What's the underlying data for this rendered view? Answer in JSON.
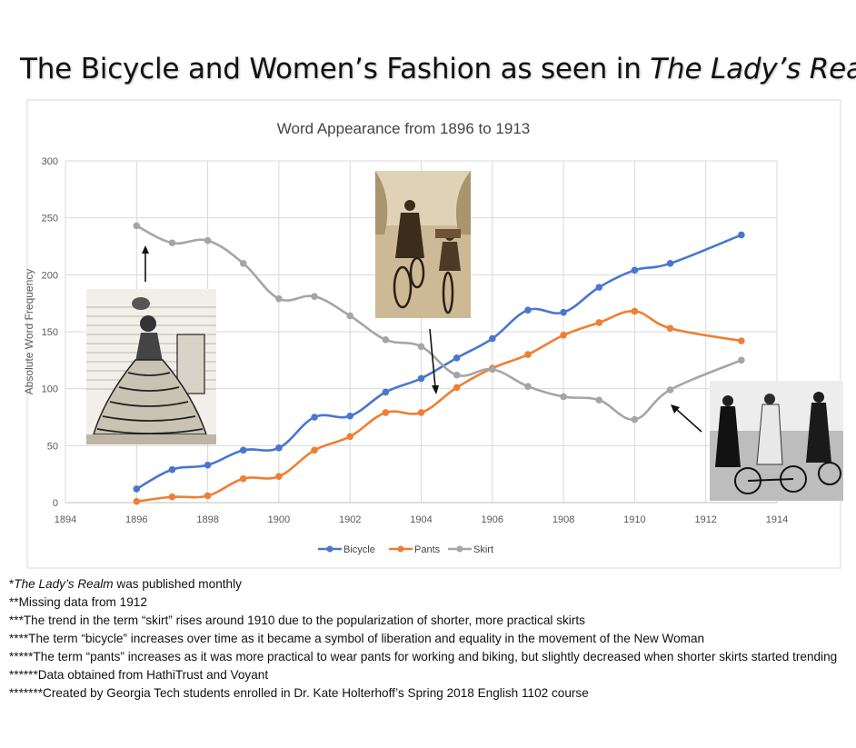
{
  "header": {
    "title_prefix": "The Bicycle and Women’s Fashion as seen in ",
    "title_italic": "The Lady’s Realm"
  },
  "chart_data": {
    "type": "line",
    "title": "Word Appearance from 1896 to 1913",
    "xlabel": "",
    "ylabel": "Absolute Word Frequency",
    "xlim": [
      1894,
      1914
    ],
    "ylim": [
      0,
      300
    ],
    "x_ticks": [
      1894,
      1896,
      1898,
      1900,
      1902,
      1904,
      1906,
      1908,
      1910,
      1912,
      1914
    ],
    "y_ticks": [
      0,
      50,
      100,
      150,
      200,
      250,
      300
    ],
    "grid": true,
    "legend_position": "bottom",
    "series": [
      {
        "name": "Bicycle",
        "color": "#4a76cf",
        "x": [
          1896,
          1897,
          1898,
          1899,
          1900,
          1901,
          1902,
          1903,
          1904,
          1905,
          1906,
          1907,
          1908,
          1909,
          1910,
          1911,
          1913
        ],
        "values": [
          12,
          29,
          33,
          46,
          48,
          75,
          76,
          97,
          109,
          127,
          144,
          169,
          167,
          189,
          204,
          210,
          235
        ]
      },
      {
        "name": "Pants",
        "color": "#ef7f33",
        "x": [
          1896,
          1897,
          1898,
          1899,
          1900,
          1901,
          1902,
          1903,
          1904,
          1905,
          1906,
          1907,
          1908,
          1909,
          1910,
          1911,
          1913
        ],
        "values": [
          1,
          5,
          6,
          21,
          23,
          46,
          58,
          79,
          79,
          101,
          118,
          130,
          147,
          158,
          168,
          153,
          142
        ]
      },
      {
        "name": "Skirt",
        "color": "#a5a5a5",
        "x": [
          1896,
          1897,
          1898,
          1899,
          1900,
          1901,
          1902,
          1903,
          1904,
          1905,
          1906,
          1907,
          1908,
          1909,
          1910,
          1911,
          1913
        ],
        "values": [
          243,
          228,
          230,
          210,
          179,
          181,
          164,
          143,
          137,
          112,
          117,
          102,
          93,
          90,
          73,
          99,
          125
        ]
      }
    ]
  },
  "notes": {
    "n1_prefix": "*",
    "n1_italic": "The Lady’s Realm",
    "n1_rest": " was published monthly",
    "n2": "**Missing data from 1912",
    "n3": "***The trend in the term “skirt” rises around 1910 due to the popularization of shorter, more practical skirts",
    "n4": "****The term “bicycle” increases over time as it became a symbol of liberation and equality in the movement of the New Woman",
    "n5": "*****The term “pants” increases as it was more practical to wear pants for working and biking, but slightly decreased when shorter skirts started trending",
    "n6": "******Data obtained from HathiTrust and Voyant",
    "n7": "*******Created by Georgia Tech students enrolled in Dr. Kate Holterhoff’s Spring 2018 English 1102 course"
  }
}
